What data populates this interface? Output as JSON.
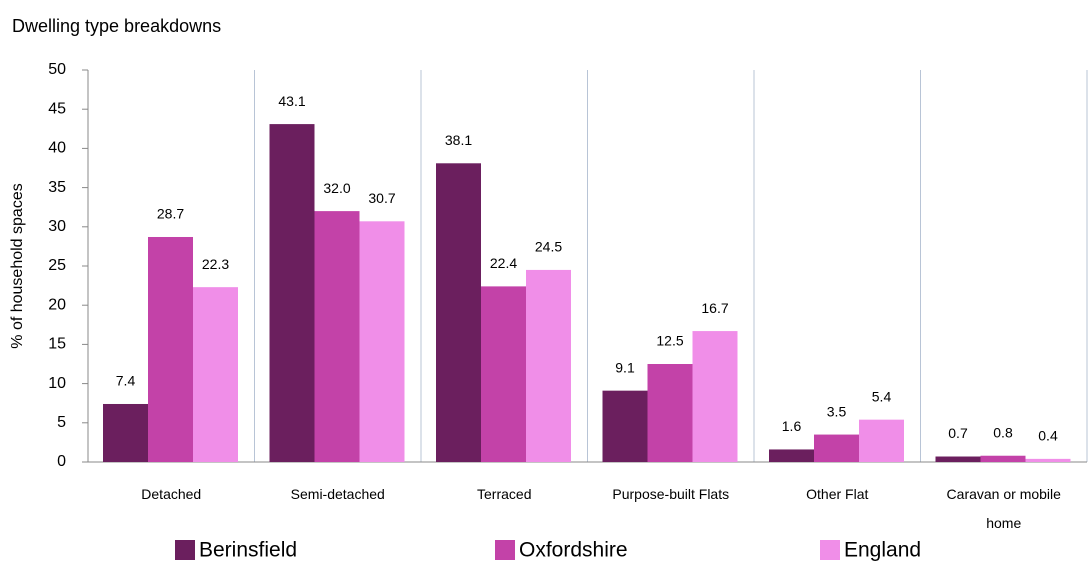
{
  "chart_data": {
    "type": "bar",
    "title": "Dwelling type breakdowns",
    "y_label": "% of household spaces",
    "categories": [
      "Detached",
      "Semi-detached",
      "Terraced",
      "Purpose-built Flats",
      "Other Flat",
      "Caravan or mobile home"
    ],
    "series": [
      {
        "name": "Berinsfield",
        "color": "#6b1f5e",
        "values": [
          7.4,
          43.1,
          38.1,
          9.1,
          1.6,
          0.7
        ],
        "value_labels": [
          "7.4",
          "43.1",
          "38.1",
          "9.1",
          "1.6",
          "0.7"
        ]
      },
      {
        "name": "Oxfordshire",
        "color": "#c342a8",
        "values": [
          28.7,
          32,
          22.4,
          12.5,
          3.5,
          0.8
        ],
        "value_labels": [
          "28.7",
          "32.0",
          "22.4",
          "12.5",
          "3.5",
          "0.8"
        ]
      },
      {
        "name": "England",
        "color": "#f08ee8",
        "values": [
          22.3,
          30.7,
          24.5,
          16.7,
          5.4,
          0.4
        ],
        "value_labels": [
          "22.3",
          "30.7",
          "24.5",
          "16.7",
          "5.4",
          "0.4"
        ]
      }
    ],
    "ylim": [
      0,
      50
    ],
    "yticks": [
      0,
      5,
      10,
      15,
      20,
      25,
      30,
      35,
      40,
      45,
      50
    ],
    "legend": "bottom"
  }
}
